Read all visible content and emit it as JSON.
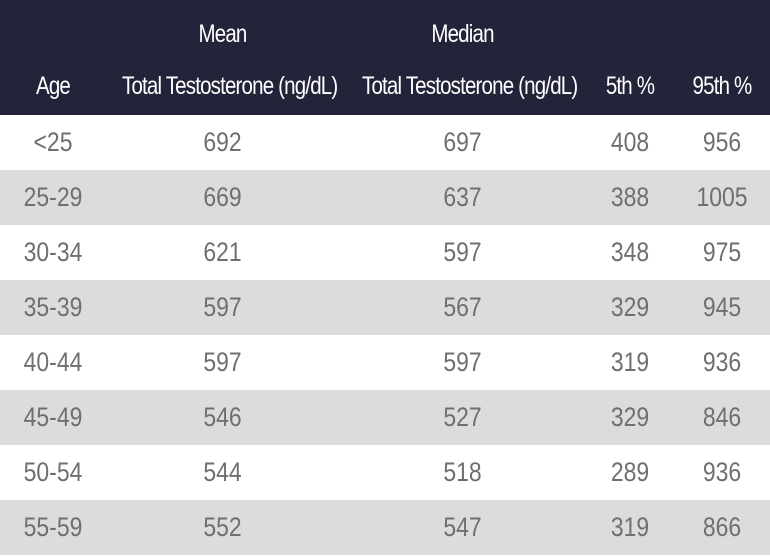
{
  "chart_data": {
    "type": "table",
    "header": {
      "age": "Age",
      "mean_top": "Mean",
      "mean_bottom": "Total Testosterone (ng/dL)",
      "median_top": "Median",
      "median_bottom": "Total Testosterone (ng/dL)",
      "p5": "5th %",
      "p95": "95th %"
    },
    "columns": [
      "Age",
      "Mean Total Testosterone (ng/dL)",
      "Median Total Testosterone (ng/dL)",
      "5th %",
      "95th %"
    ],
    "rows": [
      [
        "<25",
        "692",
        "697",
        "408",
        "956"
      ],
      [
        "25-29",
        "669",
        "637",
        "388",
        "1005"
      ],
      [
        "30-34",
        "621",
        "597",
        "348",
        "975"
      ],
      [
        "35-39",
        "597",
        "567",
        "329",
        "945"
      ],
      [
        "40-44",
        "597",
        "597",
        "319",
        "936"
      ],
      [
        "45-49",
        "546",
        "527",
        "329",
        "846"
      ],
      [
        "50-54",
        "544",
        "518",
        "289",
        "936"
      ],
      [
        "55-59",
        "552",
        "547",
        "319",
        "866"
      ]
    ]
  },
  "colors": {
    "header_bg": "#23243a",
    "header_text": "#ffffff",
    "row_alt": "#dcdcdc",
    "row_plain": "#ffffff",
    "cell_text": "#6f6f6f"
  }
}
